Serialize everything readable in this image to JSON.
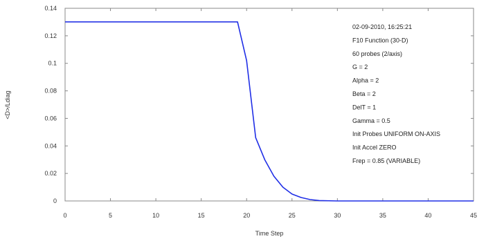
{
  "chart_data": {
    "type": "line",
    "title": "",
    "xlabel": "Time Step",
    "ylabel": "<D>/Ldiag",
    "xlim": [
      0,
      45
    ],
    "ylim": [
      0,
      0.14
    ],
    "xticks": [
      0,
      5,
      10,
      15,
      20,
      25,
      30,
      35,
      40,
      45
    ],
    "xtick_labels": [
      "0",
      "5",
      "10",
      "15",
      "20",
      "25",
      "30",
      "35",
      "40",
      "45"
    ],
    "yticks": [
      0,
      0.02,
      0.04,
      0.06,
      0.08,
      0.1,
      0.12,
      0.14
    ],
    "ytick_labels": [
      "0",
      "0.02",
      "0.04",
      "0.06",
      "0.08",
      "0.1",
      "0.12",
      "0.14"
    ],
    "grid": false,
    "series": [
      {
        "color": "#1f2ee6",
        "x": [
          0,
          19,
          20,
          21,
          22,
          23,
          24,
          25,
          26,
          27,
          28,
          30,
          45
        ],
        "y": [
          0.1301,
          0.1301,
          0.102,
          0.046,
          0.03,
          0.018,
          0.01,
          0.005,
          0.0025,
          0.001,
          0.0003,
          0.0,
          0.0
        ]
      }
    ],
    "annotations": [
      "02-09-2010, 16:25:21",
      "F10 Function (30-D)",
      "60 probes (2/axis)",
      "G = 2",
      "Alpha = 2",
      "Beta = 2",
      "DelT = 1",
      "Gamma = 0.5",
      "Init Probes UNIFORM ON-AXIS",
      "Init Accel ZERO",
      "Frep = 0.85 (VARIABLE)"
    ]
  }
}
